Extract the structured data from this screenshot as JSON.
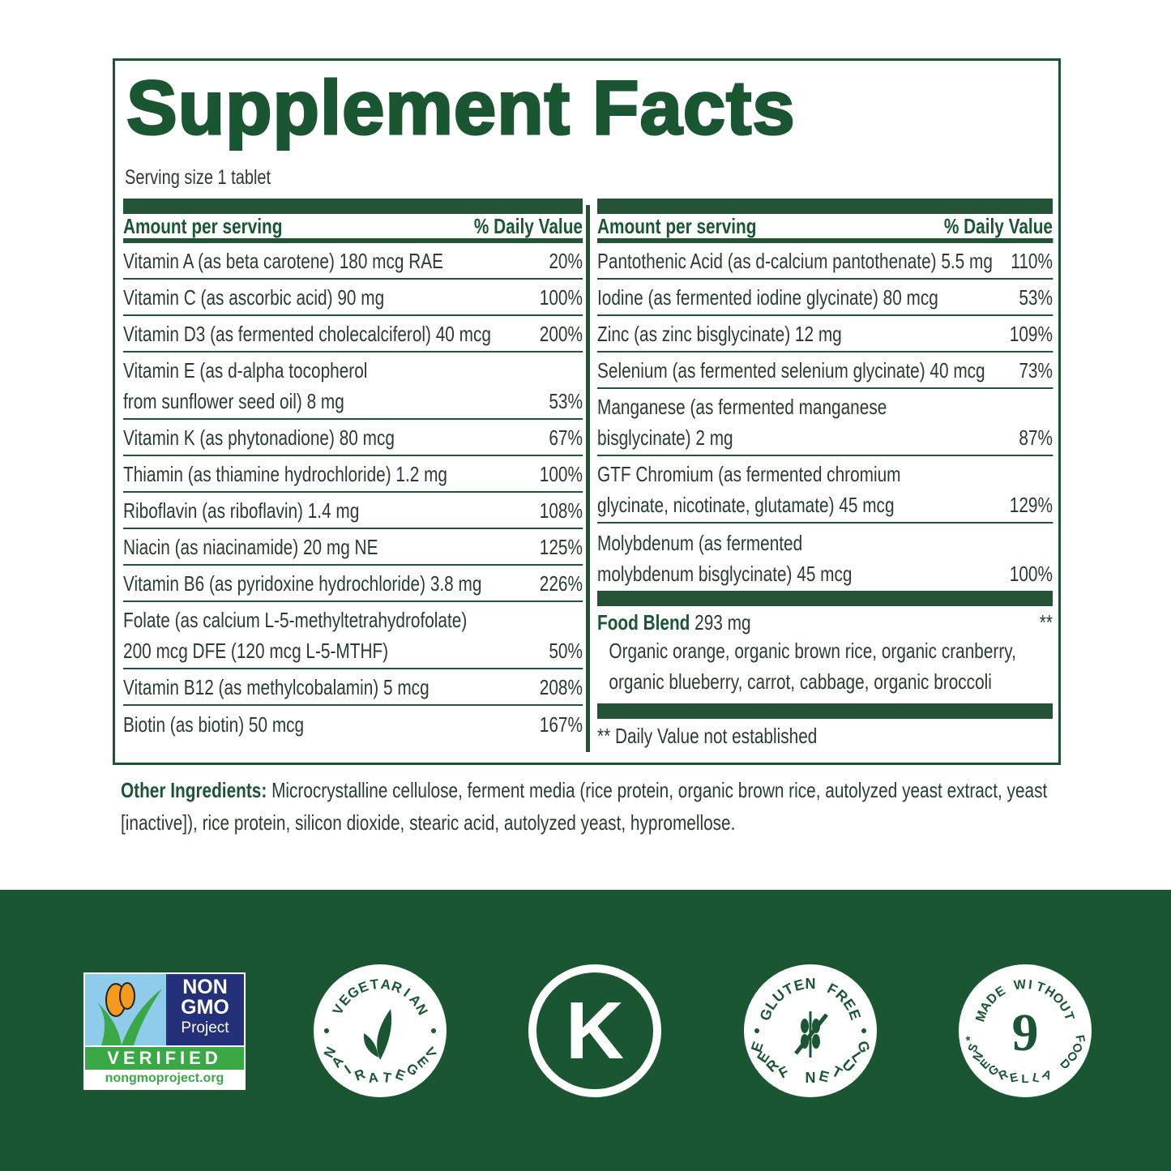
{
  "title": "Supplement Facts",
  "serving": "Serving size 1 tablet",
  "header": {
    "amount": "Amount per serving",
    "dv": "% Daily Value"
  },
  "left_rows": [
    {
      "name": "Vitamin A (as beta carotene) 180 mcg RAE",
      "dv": "20%"
    },
    {
      "name": "Vitamin C (as ascorbic acid) 90 mg",
      "dv": "100%"
    },
    {
      "name": "Vitamin D3 (as fermented cholecalciferol) 40 mcg",
      "dv": "200%"
    },
    {
      "name": "Vitamin E (as d-alpha tocopherol\nfrom sunflower seed oil) 8 mg",
      "dv": "53%"
    },
    {
      "name": "Vitamin K (as phytonadione) 80 mcg",
      "dv": "67%"
    },
    {
      "name": "Thiamin (as thiamine hydrochloride) 1.2 mg",
      "dv": "100%"
    },
    {
      "name": "Riboflavin (as riboflavin) 1.4 mg",
      "dv": "108%"
    },
    {
      "name": "Niacin (as niacinamide) 20 mg NE",
      "dv": "125%"
    },
    {
      "name": "Vitamin B6 (as pyridoxine hydrochloride) 3.8 mg",
      "dv": "226%"
    },
    {
      "name": "Folate (as calcium L-5-methyltetrahydrofolate)\n200 mcg DFE (120 mcg L-5-MTHF)",
      "dv": "50%"
    },
    {
      "name": "Vitamin B12 (as methylcobalamin) 5 mcg",
      "dv": "208%"
    },
    {
      "name": "Biotin (as biotin) 50 mcg",
      "dv": "167%"
    }
  ],
  "right_rows": [
    {
      "name": "Pantothenic Acid (as d-calcium pantothenate) 5.5 mg",
      "dv": "110%"
    },
    {
      "name": "Iodine (as fermented iodine glycinate) 80 mcg",
      "dv": "53%"
    },
    {
      "name": "Zinc (as zinc bisglycinate) 12 mg",
      "dv": "109%"
    },
    {
      "name": "Selenium (as fermented selenium glycinate) 40 mcg",
      "dv": "73%"
    },
    {
      "name": "Manganese (as fermented manganese\nbisglycinate) 2 mg",
      "dv": "87%"
    },
    {
      "name": "GTF Chromium (as fermented chromium\nglycinate, nicotinate, glutamate) 45 mcg",
      "dv": "129%"
    },
    {
      "name": "Molybdenum (as fermented\nmolybdenum bisglycinate) 45 mcg",
      "dv": "100%"
    }
  ],
  "food_blend": {
    "label": "Food Blend",
    "amount": " 293 mg",
    "dv": "**",
    "desc": "Organic orange, organic brown rice, organic cranberry, organic blueberry, carrot, cabbage, organic broccoli"
  },
  "footnote": "** Daily Value not established",
  "other": {
    "label": "Other Ingredients:",
    "text": " Microcrystalline cellulose, ferment media (rice protein, organic brown rice, autolyzed yeast extract, yeast [inactive]), rice protein, silicon dioxide, stearic acid, autolyzed yeast, hypromellose."
  },
  "badges": {
    "ngmo": {
      "line1": "NON",
      "line2": "GMO",
      "line3": "Project",
      "verified": "VERIFIED",
      "url": "nongmoproject.org"
    },
    "vegetarian": "VEGETARIAN",
    "kosher": "K",
    "gluten": "GLUTEN FREE",
    "allergen": {
      "top": "MADE WITHOUT",
      "num": "9",
      "bottom": "FOOD ALLERGENS*"
    }
  },
  "colors": {
    "brand_green": "#1b5632",
    "text": "#2a3d30"
  }
}
